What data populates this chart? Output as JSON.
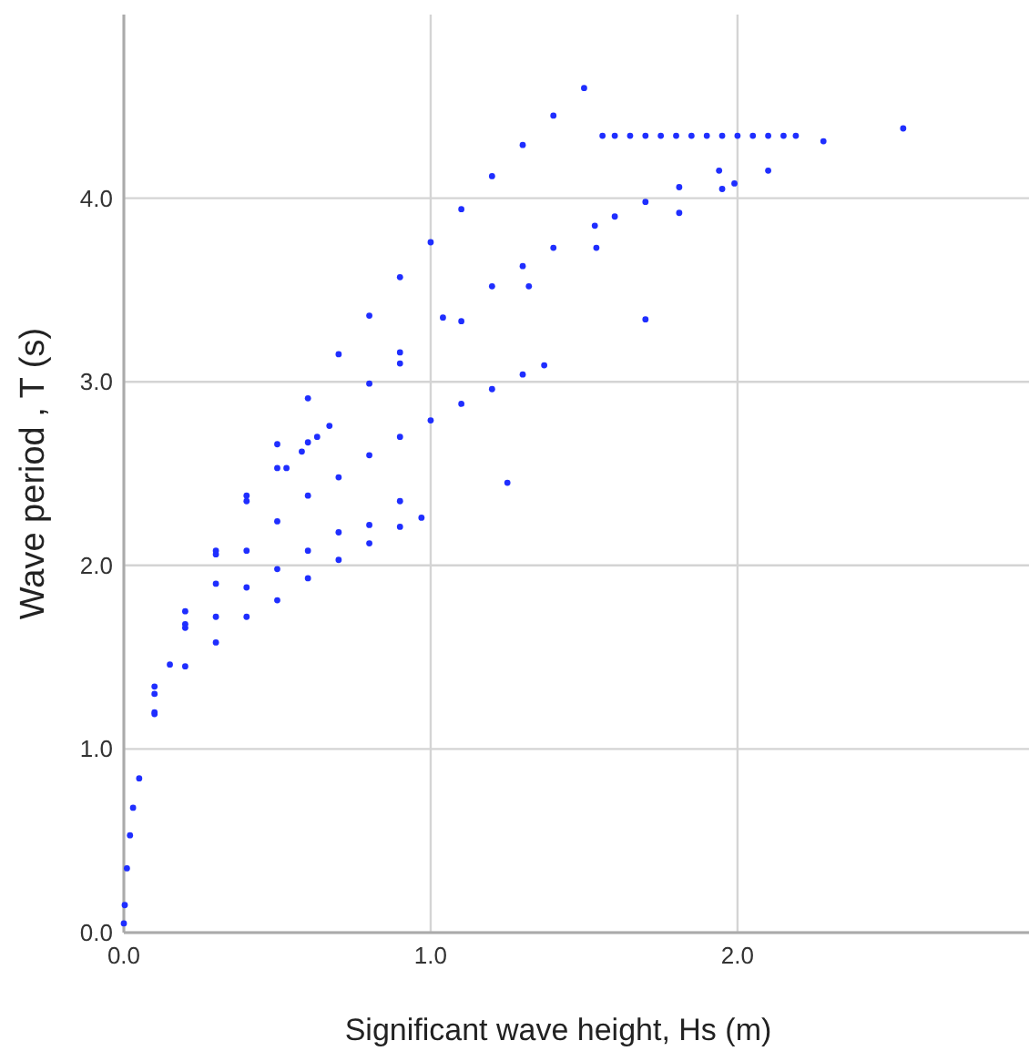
{
  "chart_data": {
    "type": "scatter",
    "xlabel": "Significant wave height, Hs (m)",
    "ylabel": "Wave period , T (s)",
    "xlim": [
      0,
      2.95
    ],
    "ylim": [
      0,
      5
    ],
    "xticks": [
      {
        "value": 0,
        "label": "0.0"
      },
      {
        "value": 1,
        "label": "1.0"
      },
      {
        "value": 2,
        "label": "2.0"
      }
    ],
    "yticks": [
      {
        "value": 0,
        "label": "0.0"
      },
      {
        "value": 1,
        "label": "1.0"
      },
      {
        "value": 2,
        "label": "2.0"
      },
      {
        "value": 3,
        "label": "3.0"
      },
      {
        "value": 4,
        "label": "4.0"
      }
    ],
    "grid": true,
    "marker": "circle",
    "series": [
      {
        "color": "#1f2eff",
        "x": [
          0,
          0.003,
          0.01,
          0.02,
          0.03,
          0.05,
          0.1,
          0.15,
          0.2,
          0.3,
          0.4,
          0.5,
          0.6,
          0.7,
          0.8,
          0.9,
          1.0,
          1.1,
          1.2,
          1.3,
          1.4,
          1.5,
          0.1,
          0.2,
          0.3,
          0.4,
          0.5,
          0.6,
          0.67,
          0.8,
          0.9,
          1.04,
          1.2,
          1.3,
          1.4,
          1.535,
          1.6,
          1.7,
          1.81,
          0.9,
          1.1,
          1.32,
          1.54,
          1.81,
          0.53,
          0.58,
          0.63,
          0.1,
          0.2,
          0.3,
          0.4,
          0.5,
          0.6,
          0.7,
          0.8,
          0.9,
          1.0,
          1.1,
          1.2,
          1.3,
          1.37,
          0.3,
          0.4,
          0.5,
          0.6,
          0.7,
          0.8,
          0.9,
          0.1,
          0.2,
          0.3,
          0.4,
          0.5,
          0.6,
          0.7,
          0.8,
          0.9,
          0.97,
          1.56,
          1.6,
          1.65,
          1.7,
          1.75,
          1.8,
          1.85,
          1.9,
          1.95,
          2.0,
          2.05,
          2.1,
          2.15,
          2.19,
          2.54,
          2.28,
          1.7,
          1.94,
          1.95,
          2.1,
          1.99,
          1.25
        ],
        "values": [
          0.05,
          0.15,
          0.35,
          0.53,
          0.68,
          0.84,
          1.19,
          1.46,
          1.68,
          2.06,
          2.38,
          2.66,
          2.91,
          3.15,
          3.36,
          3.57,
          3.76,
          3.94,
          4.12,
          4.29,
          4.45,
          4.6,
          1.3,
          1.75,
          2.08,
          2.35,
          2.53,
          2.67,
          2.76,
          2.99,
          3.16,
          3.35,
          3.52,
          3.63,
          3.73,
          3.85,
          3.9,
          3.98,
          4.06,
          3.1,
          3.33,
          3.52,
          3.73,
          3.92,
          2.53,
          2.62,
          2.7,
          1.34,
          1.66,
          1.9,
          2.08,
          2.24,
          2.38,
          2.48,
          2.6,
          2.7,
          2.79,
          2.88,
          2.96,
          3.04,
          3.09,
          1.72,
          1.88,
          1.98,
          2.08,
          2.18,
          2.22,
          2.35,
          1.2,
          1.45,
          1.58,
          1.72,
          1.81,
          1.93,
          2.03,
          2.12,
          2.21,
          2.26,
          4.34,
          4.34,
          4.34,
          4.34,
          4.34,
          4.34,
          4.34,
          4.34,
          4.34,
          4.34,
          4.34,
          4.34,
          4.34,
          4.34,
          4.38,
          4.31,
          3.34,
          4.15,
          4.05,
          4.15,
          4.08,
          2.45
        ]
      }
    ]
  }
}
